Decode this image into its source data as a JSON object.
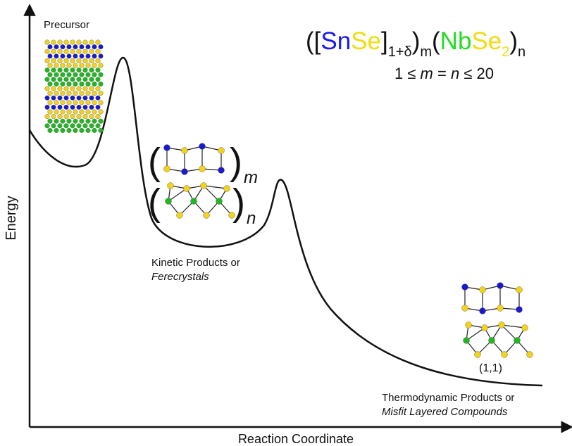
{
  "diagram": {
    "precursor_label": "Precursor",
    "formula": {
      "parts": [
        "([",
        "Sn",
        "Se",
        "]",
        "1+δ",
        ")",
        "m",
        "(",
        "Nb",
        "Se",
        "2",
        ")",
        "n"
      ]
    },
    "condition": {
      "parts": [
        "1 ≤ ",
        "m",
        " = ",
        "n",
        " ≤ 20"
      ]
    },
    "kinetic_label": [
      "Kinetic Products or",
      "Ferecrystals"
    ],
    "structure_sub": [
      "m",
      "n"
    ],
    "structure_parens": [
      "(",
      ")"
    ],
    "misfit_label": "(1,1)",
    "thermo_label": [
      "Thermodynamic Products or",
      "Misfit Layered Compounds"
    ],
    "y_axis_label": "Energy",
    "x_axis_label": "Reaction Coordinate"
  }
}
